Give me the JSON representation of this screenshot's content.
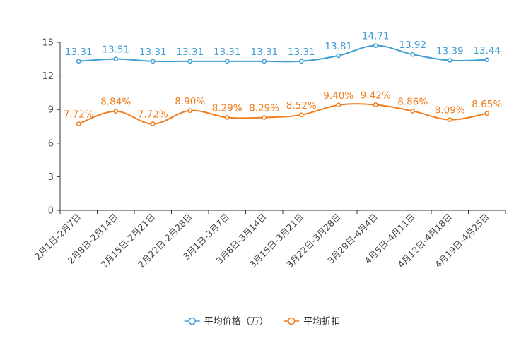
{
  "chart_data": {
    "type": "line",
    "title": "",
    "xlabel": "",
    "ylabel": "",
    "ylim": [
      0,
      15
    ],
    "yticks": [
      0,
      3,
      6,
      9,
      12,
      15
    ],
    "grid": false,
    "legend_position": "bottom-center",
    "categories": [
      "2月1日-2月7日",
      "2月8日-2月14日",
      "2月15日-2月21日",
      "2月22日-2月28日",
      "3月1日-3月7日",
      "3月8日-3月14日",
      "3月15日-3月21日",
      "3月22日-3月28日",
      "3月29日-4月4日",
      "4月5日-4月11日",
      "4月12日-4月18日",
      "4月19日-4月25日"
    ],
    "series": [
      {
        "name": "平均价格（万）",
        "color": "#3d9dd4",
        "values": [
          13.31,
          13.51,
          13.31,
          13.31,
          13.31,
          13.31,
          13.31,
          13.81,
          14.71,
          13.92,
          13.39,
          13.44
        ],
        "labels": [
          "13.31",
          "13.51",
          "13.31",
          "13.31",
          "13.31",
          "13.31",
          "13.31",
          "13.81",
          "14.71",
          "13.92",
          "13.39",
          "13.44"
        ]
      },
      {
        "name": "平均折扣",
        "color": "#f07c1c",
        "values": [
          7.72,
          8.84,
          7.72,
          8.9,
          8.29,
          8.29,
          8.52,
          9.4,
          9.42,
          8.86,
          8.09,
          8.65
        ],
        "labels": [
          "7.72%",
          "8.84%",
          "7.72%",
          "8.90%",
          "8.29%",
          "8.29%",
          "8.52%",
          "9.40%",
          "9.42%",
          "8.86%",
          "8.09%",
          "8.65%"
        ]
      }
    ]
  }
}
